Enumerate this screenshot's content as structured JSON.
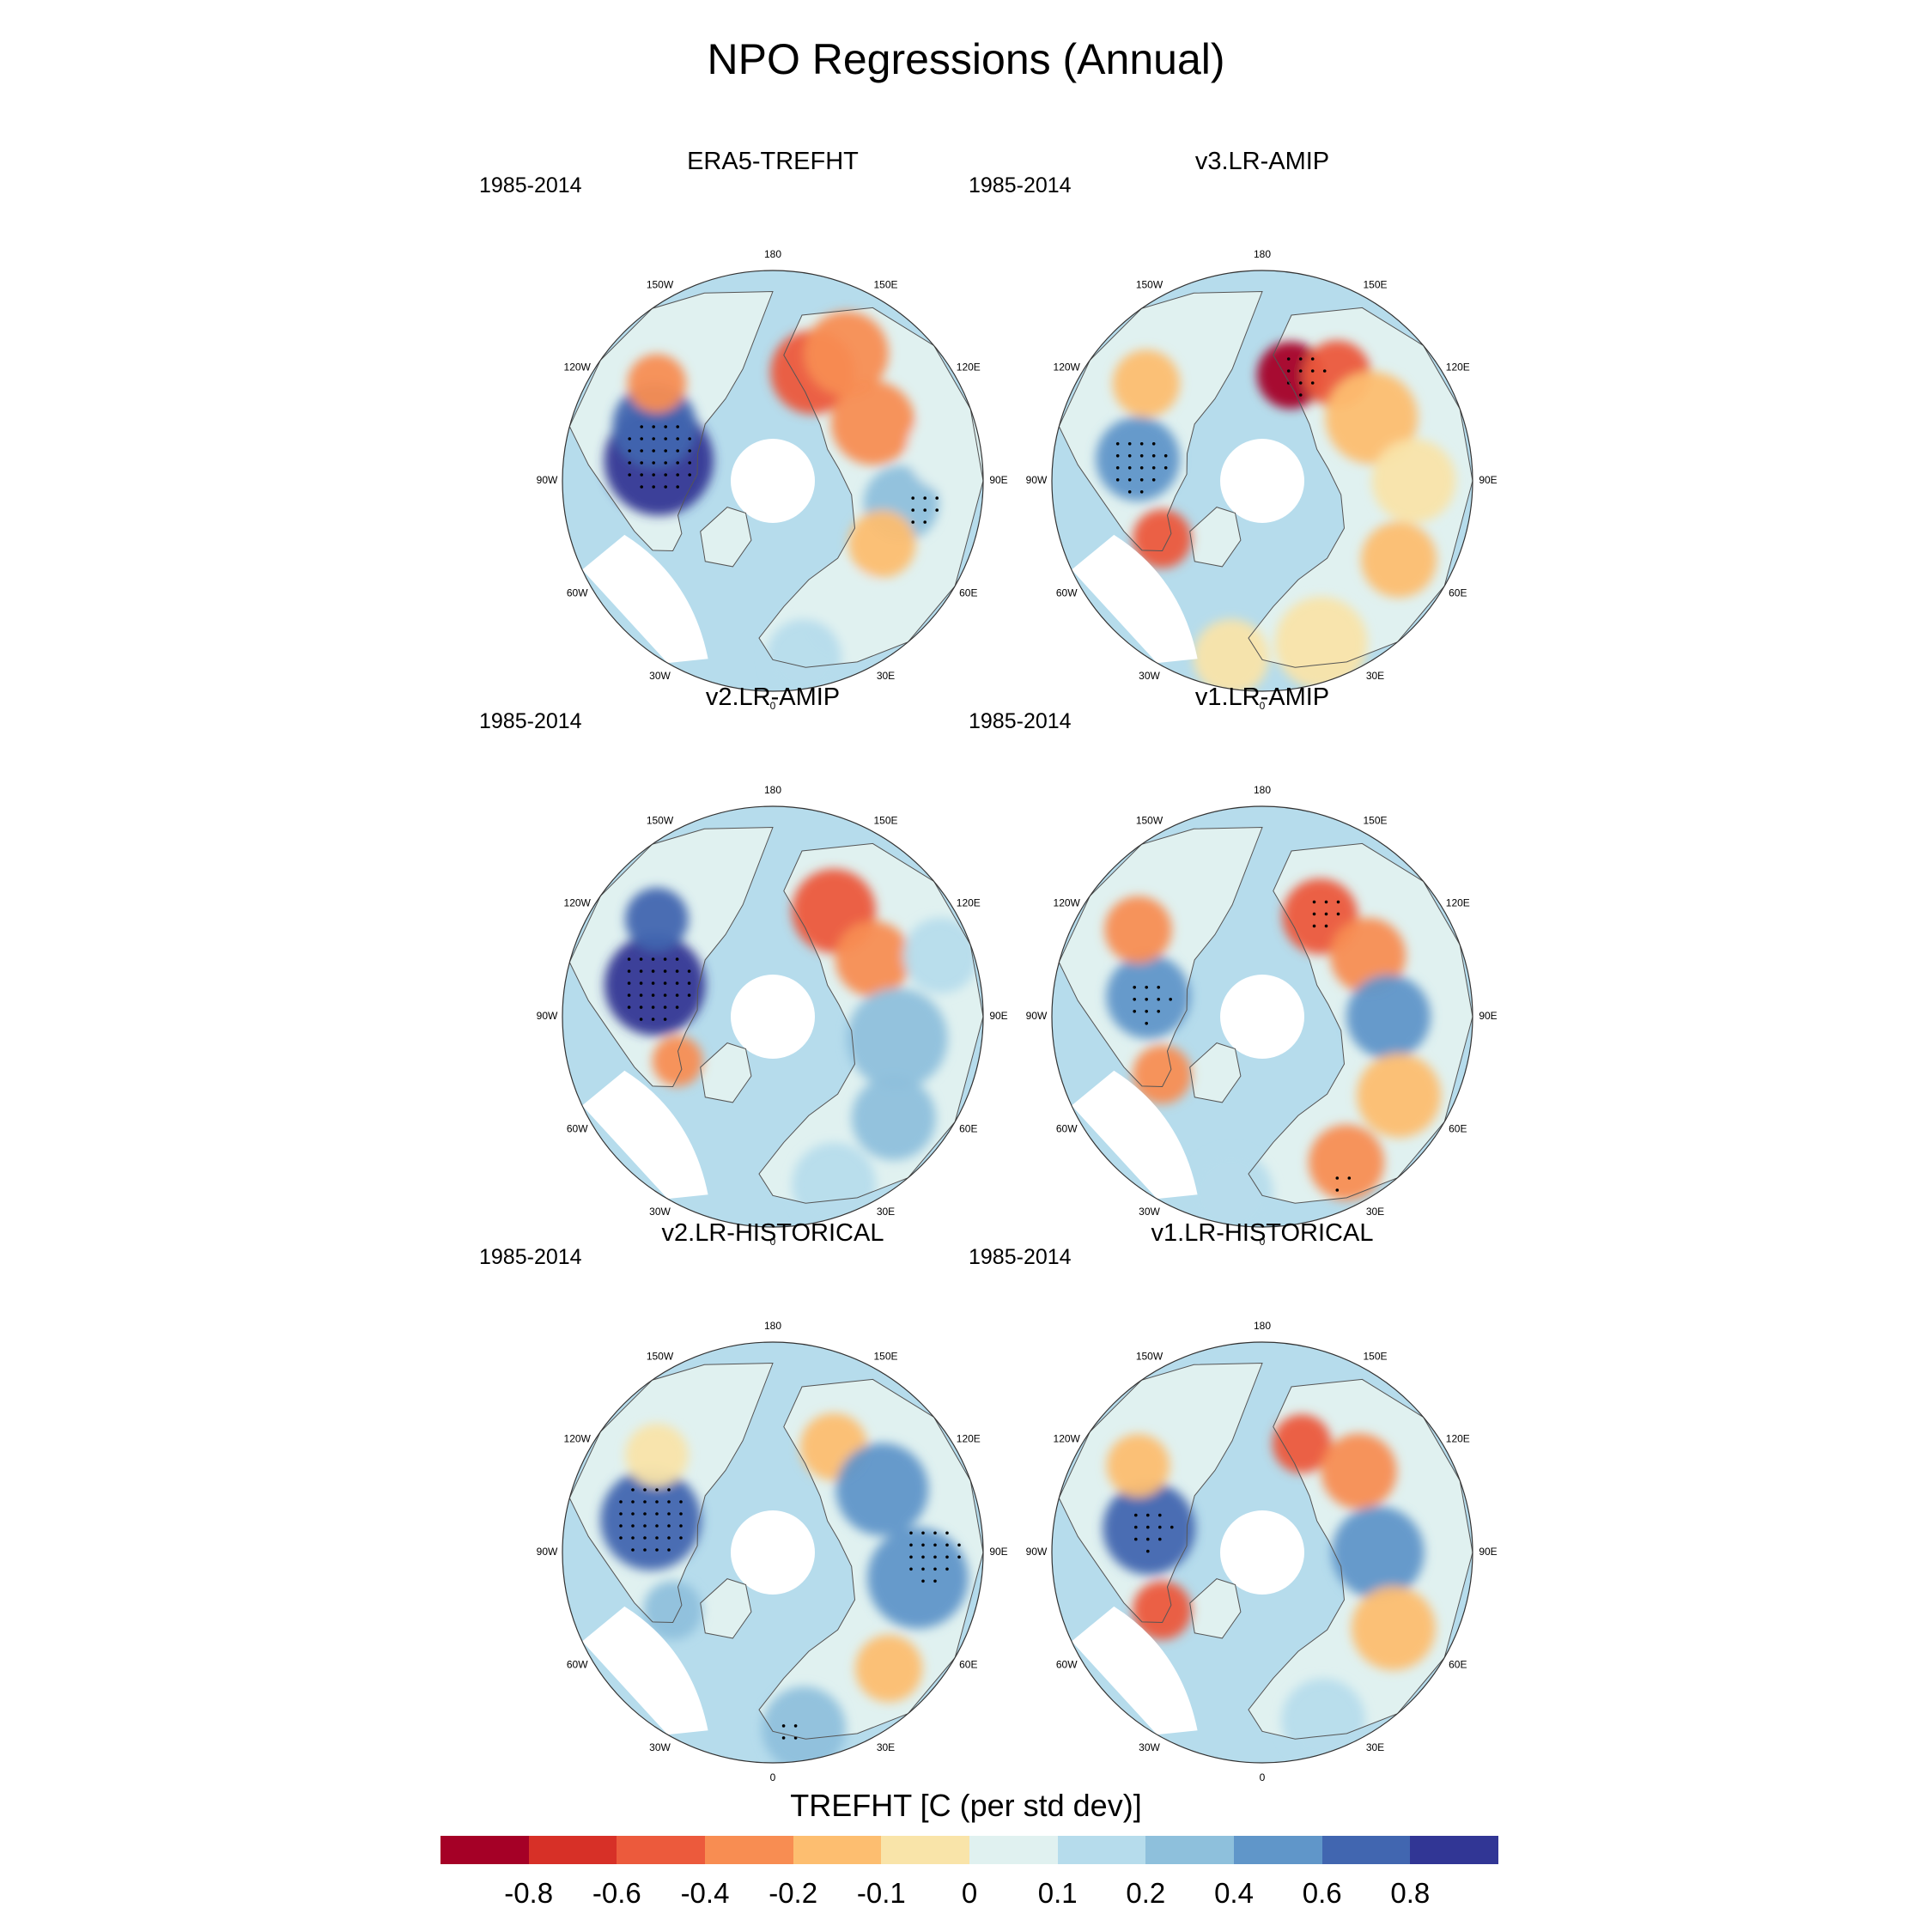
{
  "title": "NPO Regressions (Annual)",
  "lon_labels": [
    "180",
    "150E",
    "120E",
    "90E",
    "60E",
    "30E",
    "0",
    "30W",
    "60W",
    "90W",
    "120W",
    "150W"
  ],
  "panels": [
    {
      "id": "era5",
      "title": "ERA5-TREFHT",
      "period": "1985-2014",
      "blobs": [
        {
          "lon": 260,
          "r": 0.55,
          "rad": 0.26,
          "level": 11
        },
        {
          "lon": 245,
          "r": 0.62,
          "rad": 0.2,
          "level": 10
        },
        {
          "lon": 230,
          "r": 0.72,
          "rad": 0.14,
          "level": 3
        },
        {
          "lon": 160,
          "r": 0.55,
          "rad": 0.2,
          "level": 2
        },
        {
          "lon": 150,
          "r": 0.7,
          "rad": 0.2,
          "level": 3
        },
        {
          "lon": 120,
          "r": 0.55,
          "rad": 0.2,
          "level": 3
        },
        {
          "lon": 80,
          "r": 0.62,
          "rad": 0.18,
          "level": 8
        },
        {
          "lon": 60,
          "r": 0.6,
          "rad": 0.16,
          "level": 4
        },
        {
          "lon": 30,
          "r": 0.72,
          "rad": 0.2,
          "level": 6
        },
        {
          "lon": 10,
          "r": 0.85,
          "rad": 0.18,
          "level": 7
        },
        {
          "lon": 100,
          "r": 0.85,
          "rad": 0.2,
          "level": 6
        }
      ],
      "stipple": [
        {
          "lon": 258,
          "r": 0.55,
          "rad": 0.2
        },
        {
          "lon": 80,
          "r": 0.72,
          "rad": 0.1
        }
      ]
    },
    {
      "id": "v3amip",
      "title": "v3.LR-AMIP",
      "period": "1985-2014",
      "blobs": [
        {
          "lon": 260,
          "r": 0.6,
          "rad": 0.2,
          "level": 9
        },
        {
          "lon": 230,
          "r": 0.72,
          "rad": 0.16,
          "level": 4
        },
        {
          "lon": 165,
          "r": 0.52,
          "rad": 0.16,
          "level": 0
        },
        {
          "lon": 145,
          "r": 0.62,
          "rad": 0.16,
          "level": 2
        },
        {
          "lon": 120,
          "r": 0.6,
          "rad": 0.22,
          "level": 4
        },
        {
          "lon": 90,
          "r": 0.72,
          "rad": 0.2,
          "level": 5
        },
        {
          "lon": 60,
          "r": 0.75,
          "rad": 0.18,
          "level": 4
        },
        {
          "lon": 20,
          "r": 0.82,
          "rad": 0.22,
          "level": 5
        },
        {
          "lon": 300,
          "r": 0.55,
          "rad": 0.14,
          "level": 2
        },
        {
          "lon": 350,
          "r": 0.85,
          "rad": 0.18,
          "level": 5
        }
      ],
      "stipple": [
        {
          "lon": 262,
          "r": 0.6,
          "rad": 0.15
        },
        {
          "lon": 160,
          "r": 0.55,
          "rad": 0.12
        }
      ]
    },
    {
      "id": "v2amip",
      "title": "v2.LR-AMIP",
      "period": "1985-2014",
      "blobs": [
        {
          "lon": 255,
          "r": 0.58,
          "rad": 0.24,
          "level": 11
        },
        {
          "lon": 230,
          "r": 0.72,
          "rad": 0.15,
          "level": 10
        },
        {
          "lon": 150,
          "r": 0.58,
          "rad": 0.2,
          "level": 2
        },
        {
          "lon": 120,
          "r": 0.55,
          "rad": 0.18,
          "level": 3
        },
        {
          "lon": 80,
          "r": 0.6,
          "rad": 0.24,
          "level": 8
        },
        {
          "lon": 50,
          "r": 0.75,
          "rad": 0.2,
          "level": 8
        },
        {
          "lon": 110,
          "r": 0.85,
          "rad": 0.18,
          "level": 7
        },
        {
          "lon": 20,
          "r": 0.85,
          "rad": 0.2,
          "level": 7
        },
        {
          "lon": 295,
          "r": 0.5,
          "rad": 0.12,
          "level": 3
        }
      ],
      "stipple": [
        {
          "lon": 255,
          "r": 0.58,
          "rad": 0.18
        }
      ]
    },
    {
      "id": "v1amip",
      "title": "v1.LR-AMIP",
      "period": "1985-2014",
      "blobs": [
        {
          "lon": 260,
          "r": 0.55,
          "rad": 0.2,
          "level": 9
        },
        {
          "lon": 235,
          "r": 0.72,
          "rad": 0.16,
          "level": 3
        },
        {
          "lon": 150,
          "r": 0.55,
          "rad": 0.18,
          "level": 2
        },
        {
          "lon": 120,
          "r": 0.58,
          "rad": 0.18,
          "level": 3
        },
        {
          "lon": 90,
          "r": 0.6,
          "rad": 0.2,
          "level": 9
        },
        {
          "lon": 60,
          "r": 0.75,
          "rad": 0.2,
          "level": 4
        },
        {
          "lon": 30,
          "r": 0.8,
          "rad": 0.18,
          "level": 3
        },
        {
          "lon": 350,
          "r": 0.85,
          "rad": 0.2,
          "level": 7
        },
        {
          "lon": 300,
          "r": 0.55,
          "rad": 0.14,
          "level": 3
        }
      ],
      "stipple": [
        {
          "lon": 262,
          "r": 0.55,
          "rad": 0.12
        },
        {
          "lon": 150,
          "r": 0.58,
          "rad": 0.1
        },
        {
          "lon": 25,
          "r": 0.85,
          "rad": 0.06
        }
      ]
    },
    {
      "id": "v2hist",
      "title": "v2.LR-HISTORICAL",
      "period": "1985-2014",
      "blobs": [
        {
          "lon": 255,
          "r": 0.6,
          "rad": 0.24,
          "level": 10
        },
        {
          "lon": 230,
          "r": 0.72,
          "rad": 0.15,
          "level": 5
        },
        {
          "lon": 150,
          "r": 0.58,
          "rad": 0.16,
          "level": 4
        },
        {
          "lon": 120,
          "r": 0.6,
          "rad": 0.22,
          "level": 9
        },
        {
          "lon": 80,
          "r": 0.7,
          "rad": 0.24,
          "level": 9
        },
        {
          "lon": 45,
          "r": 0.78,
          "rad": 0.16,
          "level": 4
        },
        {
          "lon": 10,
          "r": 0.85,
          "rad": 0.2,
          "level": 8
        },
        {
          "lon": 300,
          "r": 0.55,
          "rad": 0.14,
          "level": 8
        }
      ],
      "stipple": [
        {
          "lon": 255,
          "r": 0.6,
          "rad": 0.2
        },
        {
          "lon": 90,
          "r": 0.75,
          "rad": 0.15
        },
        {
          "lon": 5,
          "r": 0.85,
          "rad": 0.08
        }
      ]
    },
    {
      "id": "v1hist",
      "title": "v1.LR-HISTORICAL",
      "period": "1985-2014",
      "blobs": [
        {
          "lon": 258,
          "r": 0.55,
          "rad": 0.22,
          "level": 10
        },
        {
          "lon": 235,
          "r": 0.72,
          "rad": 0.15,
          "level": 4
        },
        {
          "lon": 160,
          "r": 0.55,
          "rad": 0.14,
          "level": 2
        },
        {
          "lon": 130,
          "r": 0.6,
          "rad": 0.18,
          "level": 3
        },
        {
          "lon": 90,
          "r": 0.55,
          "rad": 0.22,
          "level": 9
        },
        {
          "lon": 60,
          "r": 0.72,
          "rad": 0.2,
          "level": 4
        },
        {
          "lon": 20,
          "r": 0.85,
          "rad": 0.2,
          "level": 7
        },
        {
          "lon": 300,
          "r": 0.55,
          "rad": 0.14,
          "level": 2
        }
      ],
      "stipple": [
        {
          "lon": 258,
          "r": 0.55,
          "rad": 0.12
        }
      ]
    }
  ],
  "colorbar": {
    "title": "TREFHT [C (per std dev)]",
    "colors": [
      "#a50026",
      "#d73027",
      "#ec5a3c",
      "#f88d52",
      "#fdbe70",
      "#f9e4a9",
      "#e0f1f0",
      "#b6dcec",
      "#8ec0dc",
      "#6096c9",
      "#4166b0",
      "#313695"
    ],
    "labels": [
      "-0.8",
      "-0.6",
      "-0.4",
      "-0.2",
      "-0.1",
      "0",
      "0.1",
      "0.2",
      "0.4",
      "0.6",
      "0.8"
    ],
    "base_level": 6,
    "ocean_level": 7
  }
}
